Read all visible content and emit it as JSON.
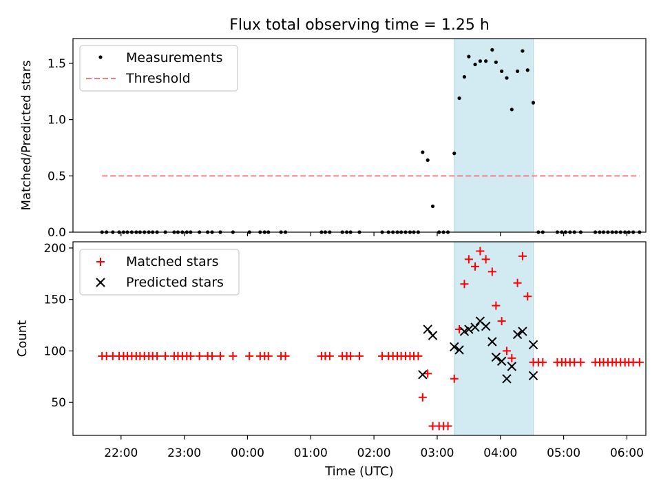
{
  "chart_data": {
    "title": "Flux total observing time = 1.25 h",
    "xlabel": "Time (UTC)",
    "x_units": "hours since 00:00 UTC (negative = previous day)",
    "xlim": [
      -2.76,
      6.3
    ],
    "xticks": [
      {
        "value": -2,
        "label": "22:00"
      },
      {
        "value": -1,
        "label": "23:00"
      },
      {
        "value": 0,
        "label": "00:00"
      },
      {
        "value": 1,
        "label": "01:00"
      },
      {
        "value": 2,
        "label": "02:00"
      },
      {
        "value": 3,
        "label": "03:00"
      },
      {
        "value": 4,
        "label": "04:00"
      },
      {
        "value": 5,
        "label": "05:00"
      },
      {
        "value": 6,
        "label": "06:00"
      }
    ],
    "highlight_span": [
      3.27,
      4.52
    ],
    "panels": [
      {
        "type": "scatter",
        "ylabel": "Matched/Predicted stars",
        "ylim": [
          0,
          1.72
        ],
        "yticks": [
          {
            "value": 0,
            "label": "0.0"
          },
          {
            "value": 0.5,
            "label": "0.5"
          },
          {
            "value": 1,
            "label": "1.0"
          },
          {
            "value": 1.5,
            "label": "1.5"
          }
        ],
        "legend_position": "top-left",
        "threshold": {
          "name": "Threshold",
          "value": 0.5,
          "x_range": [
            -2.3,
            6.2
          ],
          "color": "#f08080"
        },
        "series": [
          {
            "name": "Measurements",
            "marker": "dot",
            "color": "#000000",
            "points": [
              [
                -2.3,
                0
              ],
              [
                -2.23,
                0
              ],
              [
                -2.13,
                0
              ],
              [
                -2.03,
                0
              ],
              [
                -1.96,
                0
              ],
              [
                -1.9,
                0
              ],
              [
                -1.83,
                0
              ],
              [
                -1.76,
                0
              ],
              [
                -1.7,
                0
              ],
              [
                -1.63,
                0
              ],
              [
                -1.56,
                0
              ],
              [
                -1.5,
                0
              ],
              [
                -1.43,
                0
              ],
              [
                -1.3,
                0
              ],
              [
                -1.16,
                0
              ],
              [
                -1.1,
                0
              ],
              [
                -1.03,
                0
              ],
              [
                -0.96,
                0
              ],
              [
                -0.9,
                0
              ],
              [
                -0.76,
                0
              ],
              [
                -0.63,
                0
              ],
              [
                -0.56,
                0
              ],
              [
                -0.43,
                0
              ],
              [
                -0.23,
                0
              ],
              [
                0.03,
                0
              ],
              [
                0.2,
                0
              ],
              [
                0.27,
                0
              ],
              [
                0.33,
                0
              ],
              [
                0.53,
                0
              ],
              [
                0.6,
                0
              ],
              [
                1.17,
                0
              ],
              [
                1.23,
                0
              ],
              [
                1.3,
                0
              ],
              [
                1.5,
                0
              ],
              [
                1.57,
                0
              ],
              [
                1.63,
                0
              ],
              [
                1.77,
                0
              ],
              [
                2.13,
                0
              ],
              [
                2.23,
                0
              ],
              [
                2.3,
                0
              ],
              [
                2.37,
                0
              ],
              [
                2.43,
                0
              ],
              [
                2.5,
                0
              ],
              [
                2.57,
                0
              ],
              [
                2.63,
                0
              ],
              [
                2.7,
                0
              ],
              [
                3.03,
                0
              ],
              [
                3.1,
                0
              ],
              [
                3.17,
                0
              ],
              [
                2.77,
                0.71
              ],
              [
                2.85,
                0.64
              ],
              [
                2.93,
                0.23
              ],
              [
                3.27,
                0.7
              ],
              [
                3.35,
                1.19
              ],
              [
                3.43,
                1.38
              ],
              [
                3.5,
                1.56
              ],
              [
                3.6,
                1.49
              ],
              [
                3.68,
                1.52
              ],
              [
                3.77,
                1.52
              ],
              [
                3.87,
                1.62
              ],
              [
                3.93,
                1.51
              ],
              [
                4.02,
                1.43
              ],
              [
                4.1,
                1.37
              ],
              [
                4.18,
                1.09
              ],
              [
                4.27,
                1.43
              ],
              [
                4.35,
                1.61
              ],
              [
                4.43,
                1.44
              ],
              [
                4.52,
                1.15
              ],
              [
                4.6,
                0
              ],
              [
                4.67,
                0
              ],
              [
                4.9,
                0
              ],
              [
                4.97,
                0
              ],
              [
                5.03,
                0
              ],
              [
                5.1,
                0
              ],
              [
                5.17,
                0
              ],
              [
                5.27,
                0
              ],
              [
                5.5,
                0
              ],
              [
                5.57,
                0
              ],
              [
                5.63,
                0
              ],
              [
                5.7,
                0
              ],
              [
                5.77,
                0
              ],
              [
                5.83,
                0
              ],
              [
                5.9,
                0
              ],
              [
                5.97,
                0
              ],
              [
                6.03,
                0
              ],
              [
                6.1,
                0
              ],
              [
                6.2,
                0
              ]
            ]
          }
        ]
      },
      {
        "type": "scatter",
        "ylabel": "Count",
        "ylim": [
          18,
          206
        ],
        "yticks": [
          {
            "value": 50,
            "label": "50"
          },
          {
            "value": 100,
            "label": "100"
          },
          {
            "value": 150,
            "label": "150"
          },
          {
            "value": 200,
            "label": "200"
          }
        ],
        "legend_position": "top-left",
        "series": [
          {
            "name": "Matched stars",
            "marker": "plus",
            "color": "#ff0000",
            "points": [
              [
                -2.3,
                95
              ],
              [
                -2.23,
                95
              ],
              [
                -2.13,
                95
              ],
              [
                -2.03,
                95
              ],
              [
                -1.96,
                95
              ],
              [
                -1.9,
                95
              ],
              [
                -1.83,
                95
              ],
              [
                -1.76,
                95
              ],
              [
                -1.7,
                95
              ],
              [
                -1.63,
                95
              ],
              [
                -1.56,
                95
              ],
              [
                -1.5,
                95
              ],
              [
                -1.43,
                95
              ],
              [
                -1.3,
                95
              ],
              [
                -1.16,
                95
              ],
              [
                -1.1,
                95
              ],
              [
                -1.03,
                95
              ],
              [
                -0.96,
                95
              ],
              [
                -0.9,
                95
              ],
              [
                -0.76,
                95
              ],
              [
                -0.63,
                95
              ],
              [
                -0.56,
                95
              ],
              [
                -0.43,
                95
              ],
              [
                -0.23,
                95
              ],
              [
                0.03,
                95
              ],
              [
                0.2,
                95
              ],
              [
                0.27,
                95
              ],
              [
                0.33,
                95
              ],
              [
                0.53,
                95
              ],
              [
                0.6,
                95
              ],
              [
                1.17,
                95
              ],
              [
                1.23,
                95
              ],
              [
                1.3,
                95
              ],
              [
                1.5,
                95
              ],
              [
                1.57,
                95
              ],
              [
                1.63,
                95
              ],
              [
                1.77,
                95
              ],
              [
                2.13,
                95
              ],
              [
                2.23,
                95
              ],
              [
                2.3,
                95
              ],
              [
                2.37,
                95
              ],
              [
                2.43,
                95
              ],
              [
                2.5,
                95
              ],
              [
                2.57,
                95
              ],
              [
                2.63,
                95
              ],
              [
                2.7,
                95
              ],
              [
                2.77,
                55
              ],
              [
                2.85,
                78
              ],
              [
                2.93,
                27
              ],
              [
                3.03,
                27
              ],
              [
                3.1,
                27
              ],
              [
                3.17,
                27
              ],
              [
                3.27,
                73
              ],
              [
                3.35,
                121
              ],
              [
                3.43,
                165
              ],
              [
                3.5,
                189
              ],
              [
                3.6,
                182
              ],
              [
                3.68,
                197
              ],
              [
                3.77,
                189
              ],
              [
                3.87,
                177
              ],
              [
                3.93,
                144
              ],
              [
                4.02,
                129
              ],
              [
                4.1,
                100
              ],
              [
                4.18,
                93
              ],
              [
                4.27,
                166
              ],
              [
                4.35,
                192
              ],
              [
                4.43,
                153
              ],
              [
                4.52,
                89
              ],
              [
                4.6,
                89
              ],
              [
                4.67,
                89
              ],
              [
                4.9,
                89
              ],
              [
                4.97,
                89
              ],
              [
                5.03,
                89
              ],
              [
                5.1,
                89
              ],
              [
                5.17,
                89
              ],
              [
                5.27,
                89
              ],
              [
                5.5,
                89
              ],
              [
                5.57,
                89
              ],
              [
                5.63,
                89
              ],
              [
                5.7,
                89
              ],
              [
                5.77,
                89
              ],
              [
                5.83,
                89
              ],
              [
                5.9,
                89
              ],
              [
                5.97,
                89
              ],
              [
                6.03,
                89
              ],
              [
                6.1,
                89
              ],
              [
                6.2,
                89
              ]
            ]
          },
          {
            "name": "Predicted stars",
            "marker": "x",
            "color": "#000000",
            "points": [
              [
                2.77,
                77
              ],
              [
                2.85,
                121
              ],
              [
                2.93,
                115
              ],
              [
                3.27,
                104
              ],
              [
                3.35,
                101
              ],
              [
                3.43,
                119
              ],
              [
                3.5,
                121
              ],
              [
                3.6,
                123
              ],
              [
                3.68,
                129
              ],
              [
                3.77,
                124
              ],
              [
                3.87,
                109
              ],
              [
                3.93,
                94
              ],
              [
                4.02,
                90
              ],
              [
                4.1,
                73
              ],
              [
                4.18,
                85
              ],
              [
                4.27,
                116
              ],
              [
                4.35,
                119
              ],
              [
                4.52,
                106
              ],
              [
                4.52,
                76
              ]
            ]
          }
        ]
      }
    ]
  }
}
